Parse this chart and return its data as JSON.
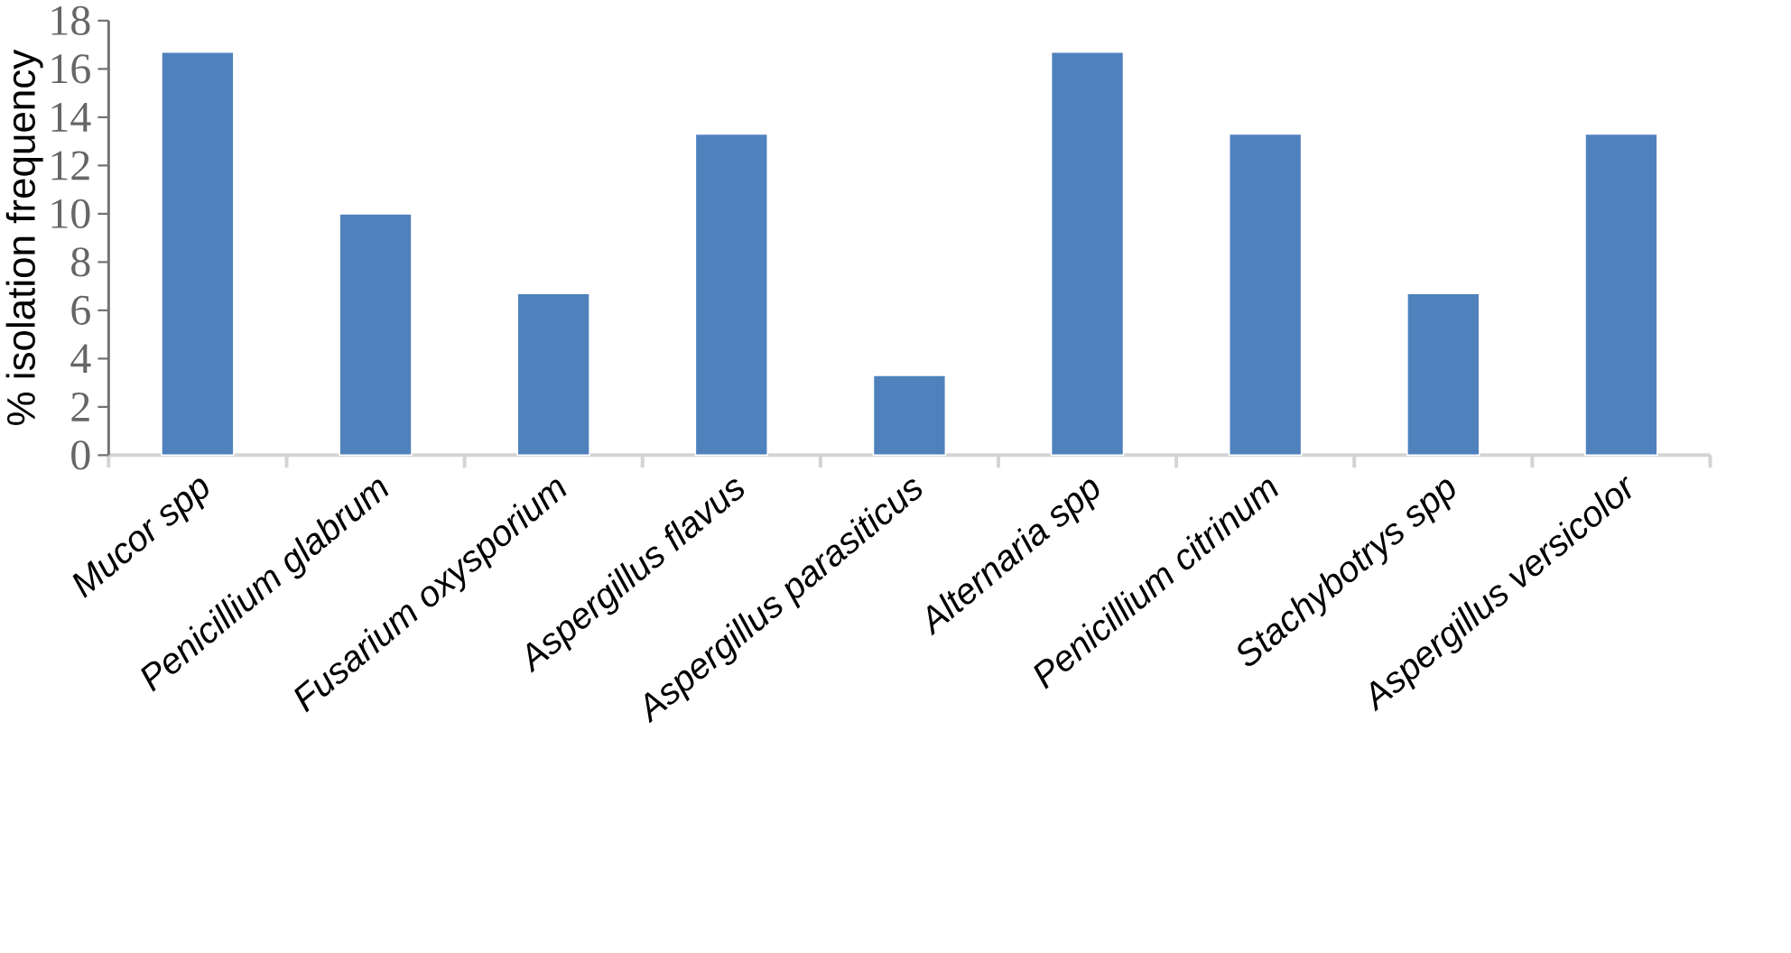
{
  "chart_data": {
    "type": "bar",
    "ylabel": "% isolation frequency",
    "categories": [
      "Mucor spp",
      "Penicillium glabrum",
      "Fusarium oxysporium",
      "Aspergillus flavus",
      "Aspergillus parasiticus",
      "Alternaria spp",
      "Penicillium citrinum",
      "Stachybotrys spp",
      "Aspergillus versicolor"
    ],
    "values": [
      16.7,
      10,
      6.7,
      13.3,
      3.3,
      16.7,
      13.3,
      6.7,
      13.3
    ],
    "color": "#4f81bd",
    "ylim": [
      0,
      18
    ],
    "yticks": [
      0,
      2,
      4,
      6,
      8,
      10,
      12,
      14,
      16,
      18
    ]
  }
}
